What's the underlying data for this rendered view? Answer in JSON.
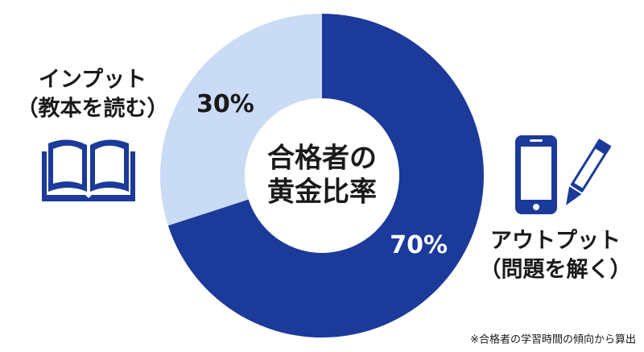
{
  "chart_data": {
    "type": "donut",
    "center_text": [
      "合格者の",
      "黄金比率"
    ],
    "categories": [
      "インプット",
      "アウトプット"
    ],
    "category_notes": [
      "（教本を読む）",
      "（問題を解く）"
    ],
    "values": [
      30,
      70
    ],
    "value_labels": [
      "30%",
      "70%"
    ],
    "colors": [
      "#c9dbf5",
      "#1b3a9a"
    ],
    "value_label_colors": [
      "#1a1a1a",
      "#ffffff"
    ],
    "footnote": "※合格者の学習時間の傾向から算出"
  }
}
